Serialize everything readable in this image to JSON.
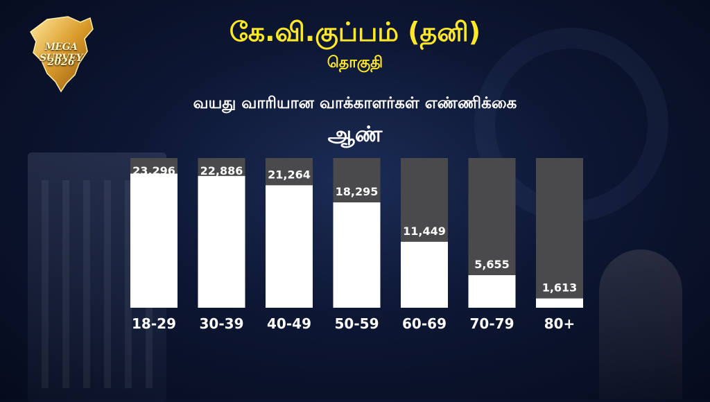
{
  "logo": {
    "line1": "MEGA SURVEY",
    "line2": "2026"
  },
  "header": {
    "title": "கே.வி.குப்பம் (தனி)",
    "subtitle": "தொகுதி"
  },
  "chart_section": {
    "title": "வயது வாரியான வாக்காளர்கள் எண்ணிக்கை",
    "gender": "ஆண்"
  },
  "colors": {
    "title": "#ffe82a",
    "bar_fill": "#ffffff",
    "bar_track": "#4a4a4c"
  },
  "chart_data": {
    "type": "bar",
    "title": "வயது வாரியான வாக்காளர்கள் எண்ணிக்கை",
    "categories": [
      "18-29",
      "30-39",
      "40-49",
      "50-59",
      "60-69",
      "70-79",
      "80+"
    ],
    "values": [
      23296,
      22886,
      21264,
      18295,
      11449,
      5655,
      1613
    ],
    "labels": [
      "23,296",
      "22,886",
      "21,264",
      "18,295",
      "11,449",
      "5,655",
      "1,613"
    ],
    "ylim": [
      0,
      26000
    ],
    "grid": false,
    "legend": "none"
  }
}
